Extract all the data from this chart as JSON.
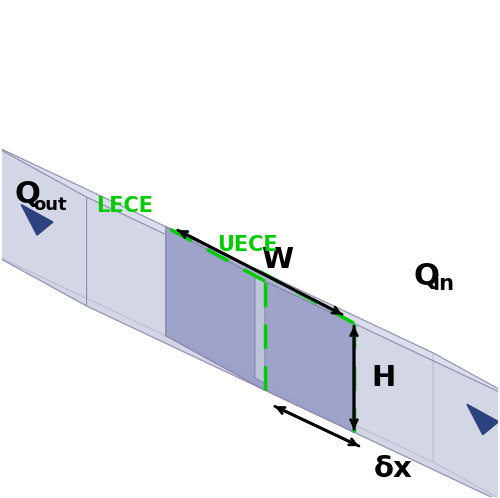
{
  "fig_width": 5.0,
  "fig_height": 4.98,
  "dpi": 100,
  "center_top_color": "#aab0d0",
  "center_front_color": "#9aa0c8",
  "center_right_color": "#c0c8dc",
  "side_top_color": "#d8dcea",
  "side_front_color": "#ccd0e0",
  "side_right_color": "#dce0ee",
  "glacier_color": "#2d4080",
  "dashed_color": "#00cc00",
  "arrow_color": "#000000",
  "label_W": "W",
  "label_H": "H",
  "label_dx": "δx",
  "label_UECE": "UECE",
  "label_LECE": "LECE"
}
